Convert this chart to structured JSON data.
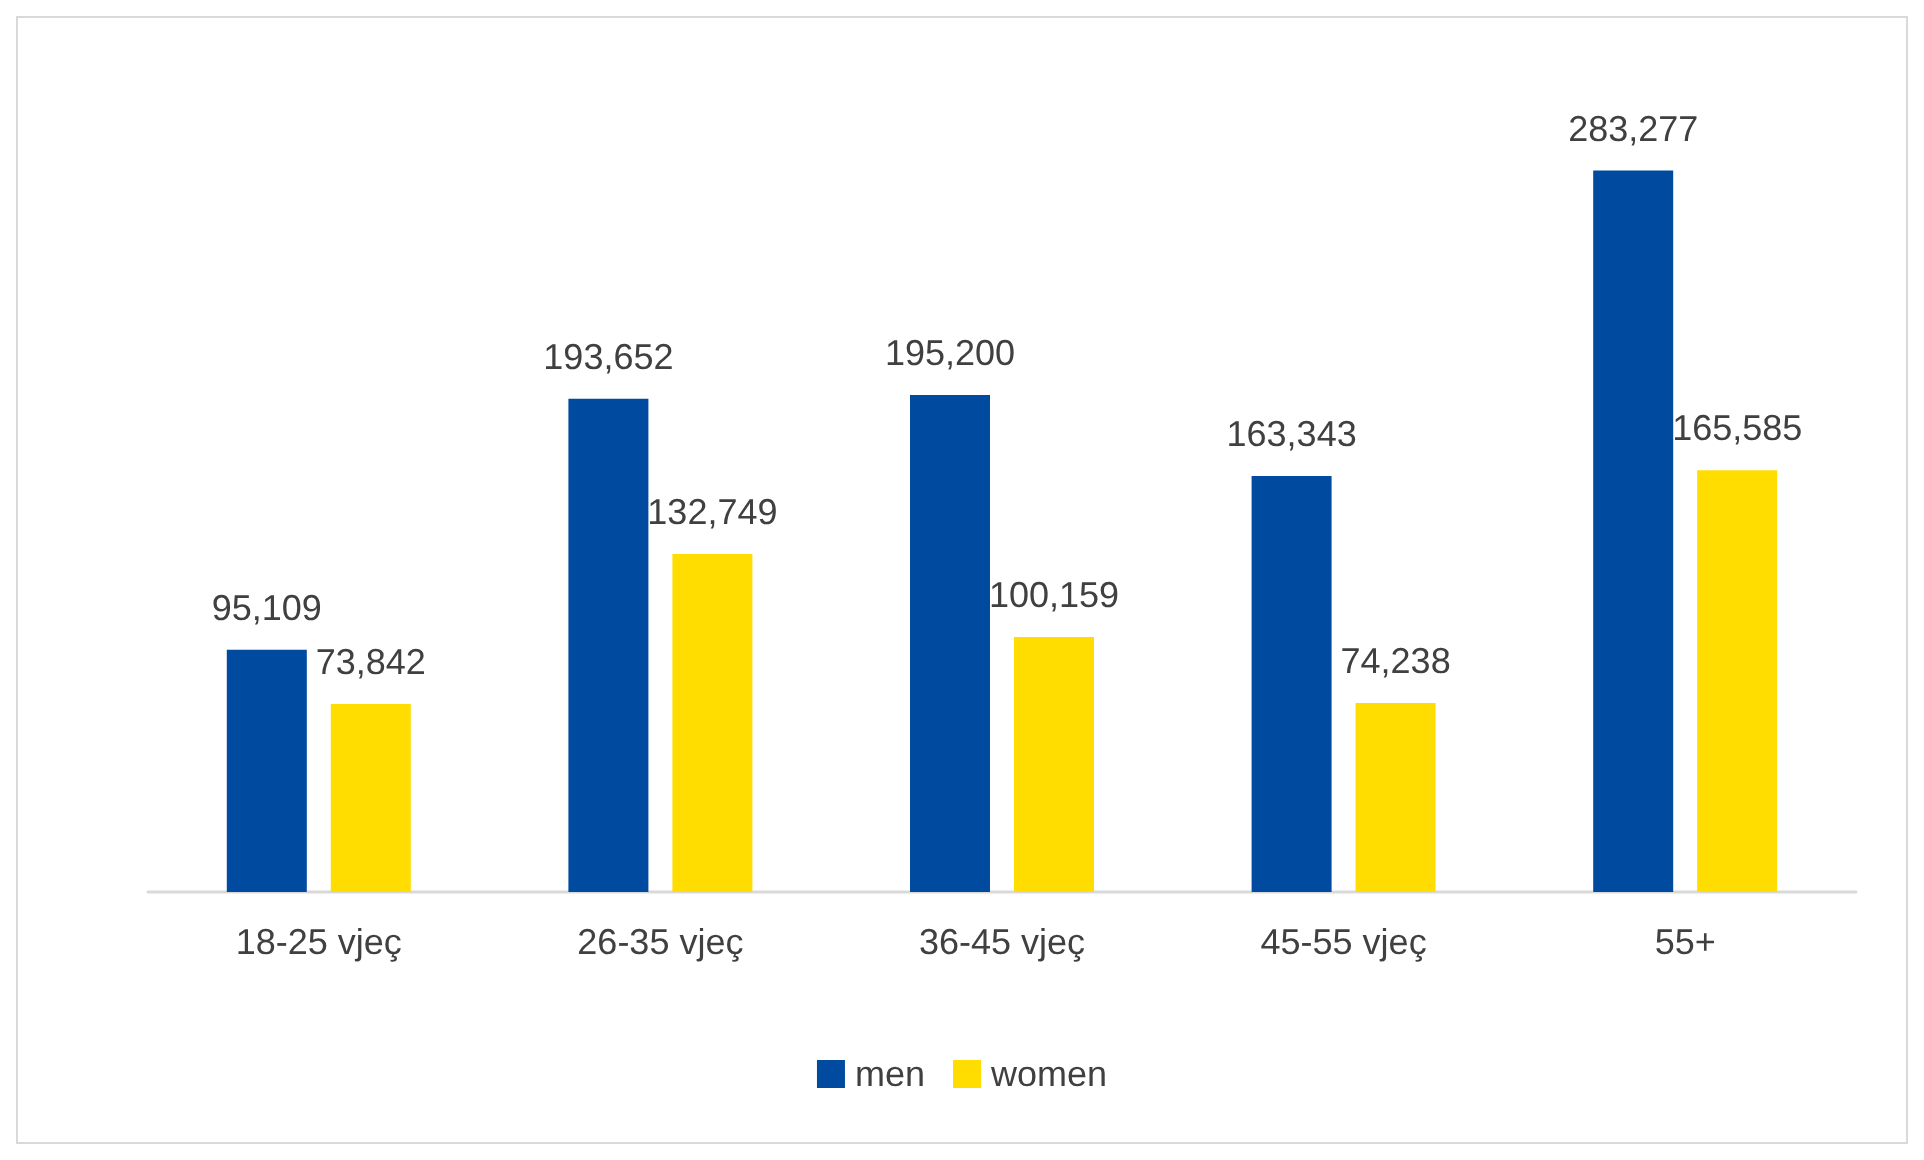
{
  "chart_data": {
    "type": "bar",
    "categories": [
      "18-25 vjeç",
      "26-35 vjeç",
      "36-45 vjeç",
      "45-55 vjeç",
      "55+"
    ],
    "series": [
      {
        "name": "men",
        "color": "#004a9f",
        "values": [
          95109,
          193652,
          195200,
          163343,
          283277
        ],
        "value_labels": [
          "95,109",
          "193,652",
          "195,200",
          "163,343",
          "283,277"
        ]
      },
      {
        "name": "women",
        "color": "#ffdd00",
        "values": [
          73842,
          132749,
          100159,
          74238,
          165585
        ],
        "value_labels": [
          "73,842",
          "132,749",
          "100,159",
          "74,238",
          "165,585"
        ]
      }
    ],
    "legend": "bottom"
  }
}
